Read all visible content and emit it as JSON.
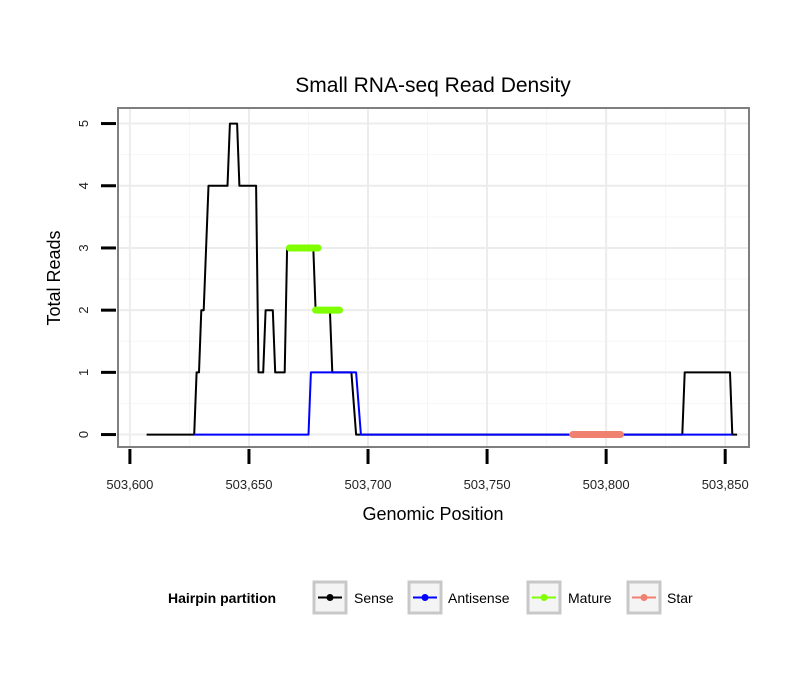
{
  "chart_data": {
    "type": "line",
    "title": "Small RNA-seq Read Density",
    "xlabel": "Genomic Position",
    "ylabel": "Total Reads",
    "xlim": [
      503595,
      503860
    ],
    "ylim": [
      -0.2,
      5.25
    ],
    "x_ticks": [
      503600,
      503650,
      503700,
      503750,
      503800,
      503850
    ],
    "x_tick_labels": [
      "503,600",
      "503,650",
      "503,700",
      "503,750",
      "503,800",
      "503,850"
    ],
    "y_ticks": [
      0,
      1,
      2,
      3,
      4,
      5
    ],
    "y_tick_labels": [
      "0",
      "1",
      "2",
      "3",
      "4",
      "5"
    ],
    "grid": true,
    "legend": {
      "title": "Hairpin partition",
      "position": "bottom",
      "entries": [
        "Sense",
        "Antisense",
        "Mature",
        "Star"
      ]
    },
    "series": [
      {
        "name": "Sense",
        "color": "#000000",
        "points": [
          [
            503607,
            0
          ],
          [
            503627,
            0
          ],
          [
            503628,
            1
          ],
          [
            503629,
            1
          ],
          [
            503630,
            2
          ],
          [
            503631,
            2
          ],
          [
            503633,
            4
          ],
          [
            503641,
            4
          ],
          [
            503642,
            5
          ],
          [
            503645,
            5
          ],
          [
            503646,
            4
          ],
          [
            503653,
            4
          ],
          [
            503654,
            1
          ],
          [
            503656,
            1
          ],
          [
            503657,
            2
          ],
          [
            503660,
            2
          ],
          [
            503661,
            1
          ],
          [
            503665,
            1
          ],
          [
            503666,
            3
          ],
          [
            503672,
            3
          ],
          [
            503673,
            3
          ],
          [
            503677,
            3
          ],
          [
            503678,
            2
          ],
          [
            503684,
            2
          ],
          [
            503685,
            1
          ],
          [
            503693,
            1
          ],
          [
            503695,
            0
          ],
          [
            503832,
            0
          ],
          [
            503833,
            1
          ],
          [
            503852,
            1
          ],
          [
            503853,
            0
          ],
          [
            503855,
            0
          ]
        ]
      },
      {
        "name": "Antisense",
        "color": "#0000ff",
        "points": [
          [
            503627,
            0
          ],
          [
            503675,
            0
          ],
          [
            503676,
            1
          ],
          [
            503695,
            1
          ],
          [
            503697,
            0
          ],
          [
            503853,
            0
          ]
        ]
      },
      {
        "name": "Mature",
        "color": "#7fff00",
        "segments": [
          {
            "x": [
              503667,
              503679
            ],
            "y": 3
          },
          {
            "x": [
              503678,
              503688
            ],
            "y": 2
          }
        ]
      },
      {
        "name": "Star",
        "color": "#f08070",
        "segments": [
          {
            "x": [
              503786,
              503806
            ],
            "y": 0
          }
        ]
      }
    ]
  }
}
